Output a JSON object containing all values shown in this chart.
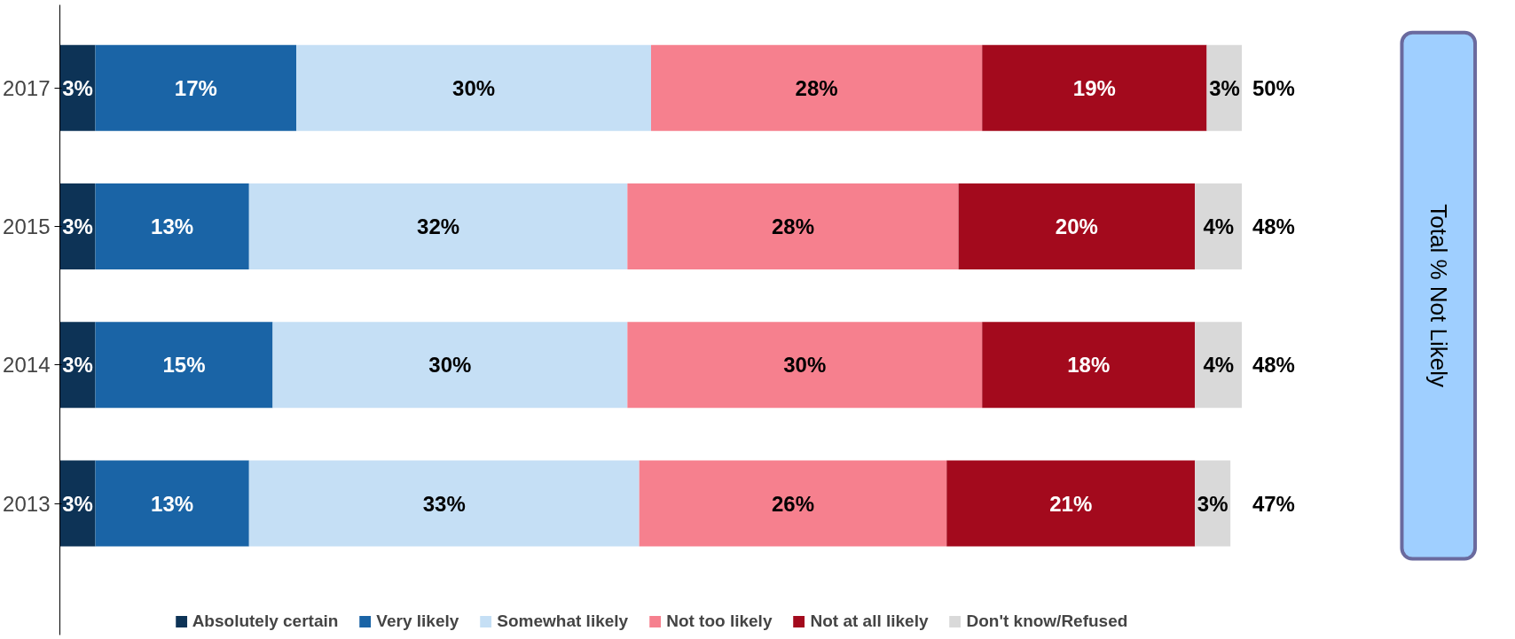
{
  "chart_data": {
    "type": "bar",
    "orientation": "horizontal",
    "stacked": true,
    "categories": [
      "2017",
      "2015",
      "2014",
      "2013"
    ],
    "xlim": [
      0,
      100
    ],
    "tick_labels": "y",
    "grid": false,
    "legend": "bottom",
    "series": [
      {
        "name": "Absolutely certain",
        "color": "#0d3356",
        "values": [
          3,
          3,
          3,
          3
        ],
        "value_labels": [
          "3%",
          "3%",
          "3%",
          "3%"
        ]
      },
      {
        "name": "Very likely",
        "color": "#1a64a6",
        "values": [
          17,
          13,
          15,
          13
        ],
        "value_labels": [
          "17%",
          "13%",
          "15%",
          "13%"
        ]
      },
      {
        "name": "Somewhat likely",
        "color": "#c5dff5",
        "values": [
          30,
          32,
          30,
          33
        ],
        "value_labels": [
          "30%",
          "32%",
          "30%",
          "33%"
        ]
      },
      {
        "name": "Not too likely",
        "color": "#f6808e",
        "values": [
          28,
          28,
          30,
          26
        ],
        "value_labels": [
          "28%",
          "28%",
          "30%",
          "26%"
        ]
      },
      {
        "name": "Not at all likely",
        "color": "#a30a1d",
        "values": [
          19,
          20,
          18,
          21
        ],
        "value_labels": [
          "19%",
          "20%",
          "18%",
          "21%"
        ]
      },
      {
        "name": "Don't know/Refused",
        "color": "#d9d9d9",
        "values": [
          3,
          4,
          4,
          3
        ],
        "value_labels": [
          "3%",
          "4%",
          "4%",
          "3%"
        ]
      }
    ],
    "annotations": [
      "50%",
      "48%",
      "48%",
      "47%",
      "Total % Not Likely"
    ]
  }
}
